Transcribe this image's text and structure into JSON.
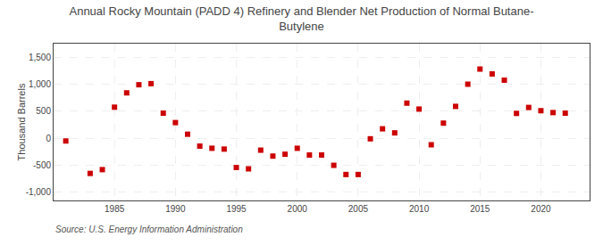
{
  "chart_data": {
    "type": "scatter",
    "title": "Annual Rocky Mountain (PADD 4) Refinery and Blender Net Production of Normal Butane-\nButylene",
    "ylabel": "Thousand Barrels",
    "annotations": [
      "Source: U.S. Energy Information Administration"
    ],
    "x": [
      1981,
      1983,
      1984,
      1985,
      1986,
      1987,
      1988,
      1989,
      1990,
      1991,
      1992,
      1993,
      1994,
      1995,
      1996,
      1997,
      1998,
      1999,
      2000,
      2001,
      2002,
      2003,
      2004,
      2005,
      2006,
      2007,
      2008,
      2009,
      2010,
      2011,
      2012,
      2013,
      2014,
      2015,
      2016,
      2017,
      2018,
      2019,
      2020,
      2021,
      2022
    ],
    "values": [
      -50,
      -650,
      -580,
      575,
      840,
      990,
      1010,
      465,
      290,
      75,
      -145,
      -185,
      -200,
      -540,
      -565,
      -220,
      -330,
      -295,
      -185,
      -310,
      -310,
      -500,
      -670,
      -670,
      -10,
      175,
      100,
      650,
      540,
      -120,
      280,
      590,
      1000,
      1280,
      1190,
      1075,
      460,
      570,
      510,
      475,
      465
    ],
    "color": "#cc0000",
    "marker": "square",
    "xlim": [
      1980,
      2024
    ],
    "xticks": [
      1985,
      1990,
      1995,
      2000,
      2005,
      2010,
      2015,
      2020
    ],
    "ylim": [
      -1150,
      1750
    ],
    "yticks": [
      {
        "value": -1000,
        "label": "-1,000"
      },
      -500,
      0,
      500,
      {
        "value": 1000,
        "label": "1,000"
      },
      {
        "value": 1500,
        "label": "1,500"
      }
    ],
    "grid": true
  }
}
